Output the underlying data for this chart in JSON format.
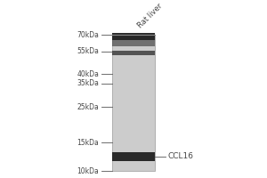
{
  "fig_width": 3.0,
  "fig_height": 2.0,
  "dpi": 100,
  "background_color": "#ffffff",
  "mw_labels": [
    "70kDa",
    "55kDa",
    "40kDa",
    "35kDa",
    "25kDa",
    "15kDa",
    "10kDa"
  ],
  "mw_values": [
    70,
    55,
    40,
    35,
    25,
    15,
    10
  ],
  "sample_label": "Rat liver",
  "band_label": "CCL16",
  "lane_color": "#cccccc",
  "band_color_top1": "#1a1a1a",
  "band_color_top2": "#2a2a2a",
  "band_color_bottom": "#1c1c1c",
  "marker_color": "#555555",
  "text_color": "#444444",
  "label_fontsize": 5.5,
  "sample_fontsize": 6.0,
  "band_label_fontsize": 6.5
}
